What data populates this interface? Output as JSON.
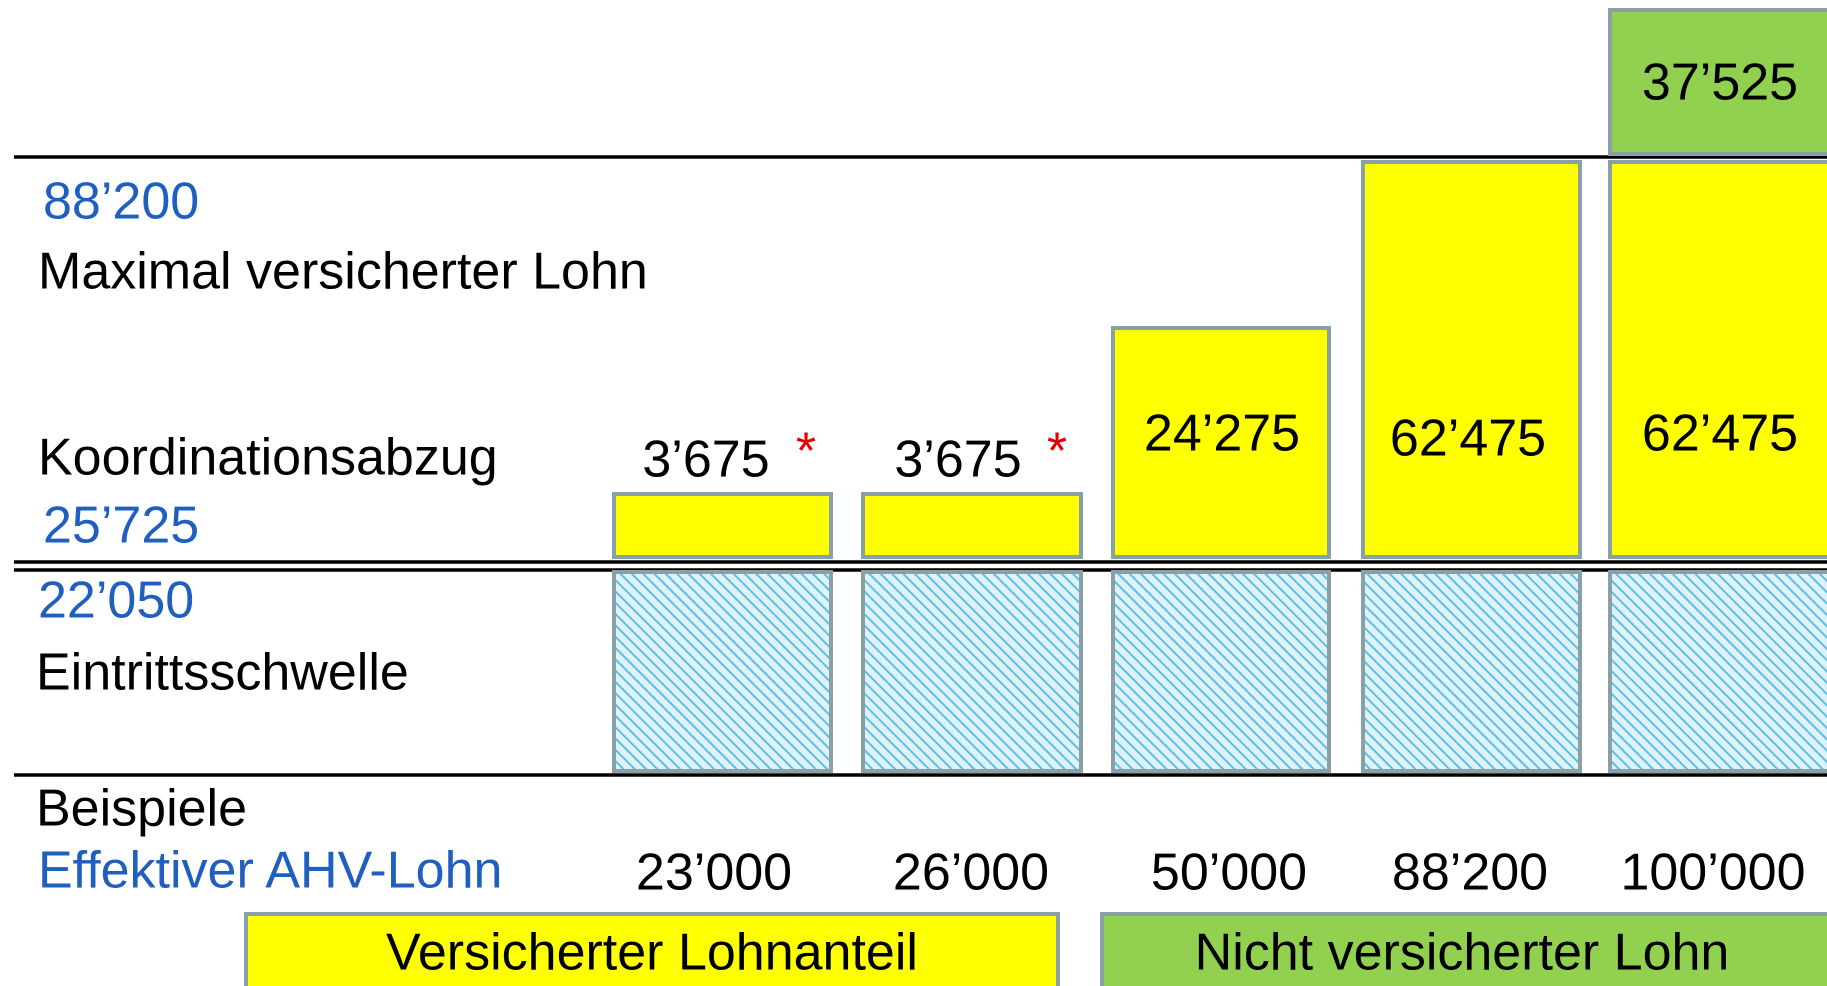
{
  "labels": {
    "max_value": "88’200",
    "max_label": "Maximal versicherter Lohn",
    "coord_label": "Koordinationsabzug",
    "coord_value": "25’725",
    "threshold_value": "22’050",
    "threshold_label": "Eintrittsschwelle",
    "examples_label": "Beispiele",
    "wage_label": "Effektiver AHV-Lohn"
  },
  "columns": [
    {
      "insured": "3’675",
      "note": "*",
      "wage": "23’000"
    },
    {
      "insured": "3’675",
      "note": "*",
      "wage": "26’000"
    },
    {
      "insured": "24’275",
      "wage": "50’000"
    },
    {
      "insured": "62’475",
      "wage": "88’200"
    },
    {
      "insured": "62’475",
      "uninsured": "37’525",
      "wage": "100’000"
    }
  ],
  "legend": {
    "insured": "Versicherter Lohnanteil",
    "uninsured": "Nicht versicherter Lohn"
  }
}
